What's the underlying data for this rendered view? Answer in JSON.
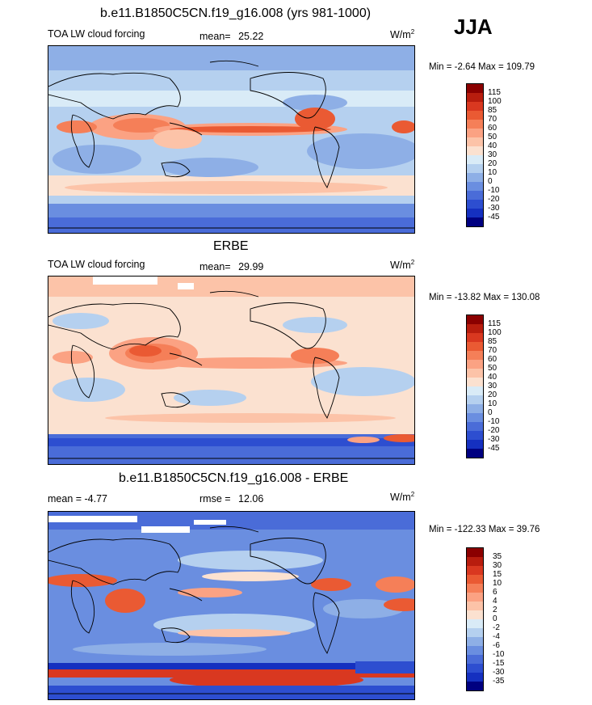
{
  "season": "JJA",
  "units": {
    "base": "W/m",
    "exp": "2"
  },
  "panels": [
    {
      "title": "b.e11.B1850C5CN.f19_g16.008 (yrs 981-1000)",
      "left_label": "TOA LW cloud forcing",
      "stat_label": "mean=",
      "stat_value": "25.22",
      "minmax": "Min =  -2.64 Max = 109.79"
    },
    {
      "title": "ERBE",
      "left_label": "TOA LW cloud forcing",
      "stat_label": "mean=",
      "stat_value": "29.99",
      "minmax": "Min = -13.82 Max = 130.08"
    },
    {
      "title": "b.e11.B1850C5CN.f19_g16.008 - ERBE",
      "left_label": "mean =  -4.77",
      "stat_label": "rmse =",
      "stat_value": "12.06",
      "minmax": "Min = -122.33 Max =  39.76"
    }
  ],
  "colorbars": {
    "abs": {
      "labels": [
        "115",
        "100",
        "85",
        "70",
        "60",
        "50",
        "40",
        "30",
        "20",
        "10",
        "0",
        "-10",
        "-20",
        "-30",
        "-45"
      ],
      "colors": [
        "#8b0000",
        "#b81d0e",
        "#d93820",
        "#ea5a33",
        "#f57f58",
        "#fba283",
        "#fcc3a8",
        "#fbe1d0",
        "#d9ebf7",
        "#b5d0ef",
        "#8eafe6",
        "#6a8ee0",
        "#4a6cd8",
        "#2d4ed0",
        "#1530c0",
        "#000080"
      ]
    },
    "diff": {
      "labels": [
        "35",
        "30",
        "15",
        "10",
        "6",
        "4",
        "2",
        "0",
        "-2",
        "-4",
        "-6",
        "-10",
        "-15",
        "-30",
        "-35"
      ],
      "colors": [
        "#8b0000",
        "#b81d0e",
        "#d93820",
        "#ea5a33",
        "#f57f58",
        "#fba283",
        "#fcc3a8",
        "#fbe1d0",
        "#d9ebf7",
        "#b5d0ef",
        "#8eafe6",
        "#6a8ee0",
        "#4a6cd8",
        "#2d4ed0",
        "#1530c0",
        "#000080"
      ]
    }
  }
}
